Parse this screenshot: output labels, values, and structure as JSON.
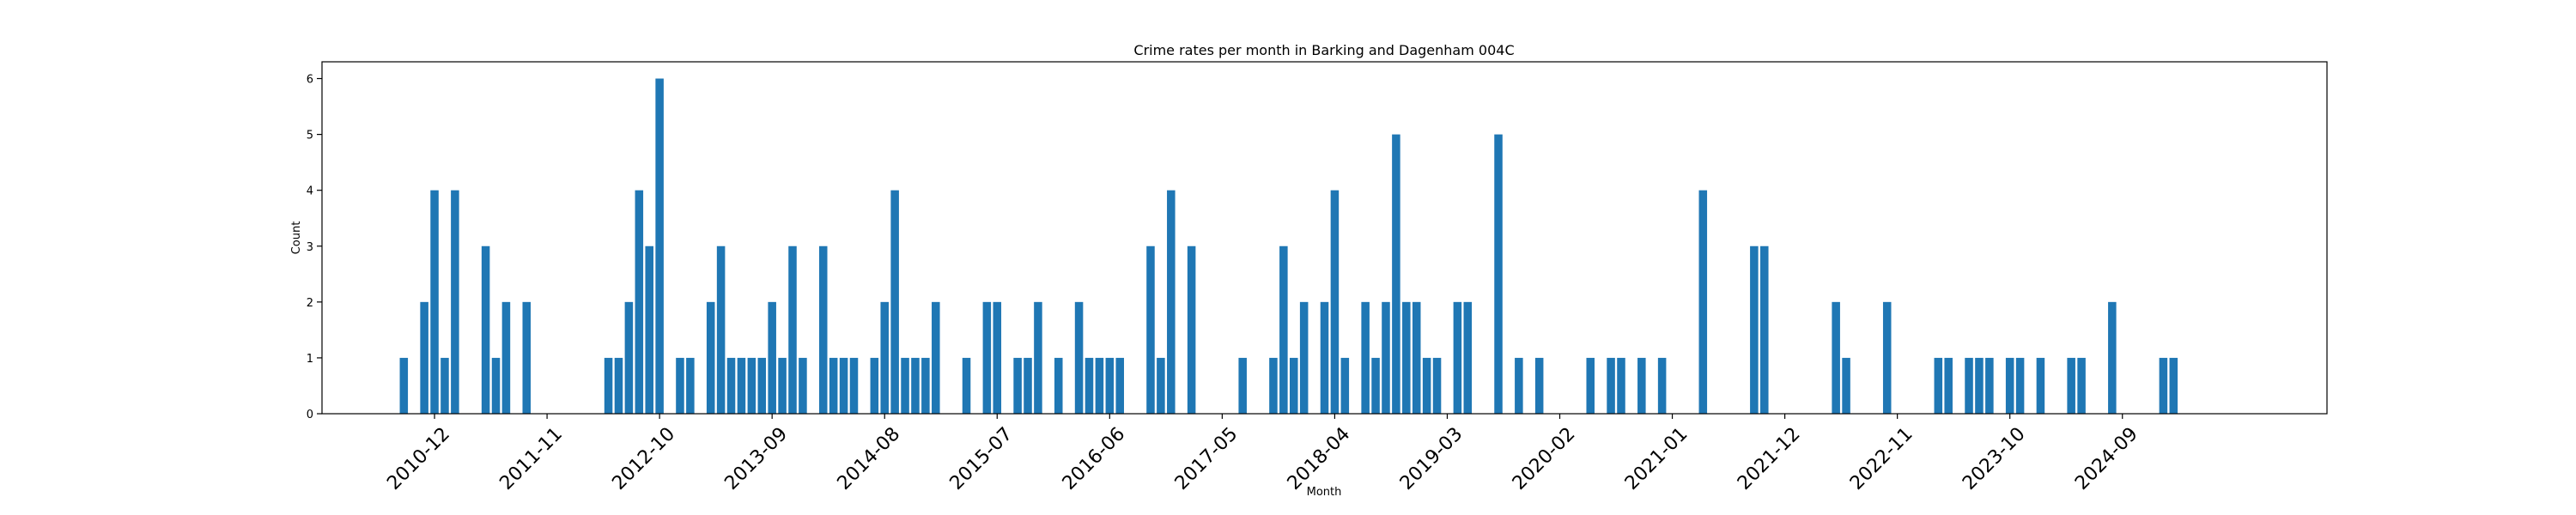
{
  "chart_data": {
    "type": "bar",
    "title": "Crime rates per month in Barking and Dagenham 004C",
    "xlabel": "Month",
    "ylabel": "Count",
    "color": "#1f77b4",
    "ylim": [
      0,
      6.3
    ],
    "yticks": [
      0,
      1,
      2,
      3,
      4,
      5,
      6
    ],
    "xlim": [
      "2010-01",
      "2026-05"
    ],
    "xticks": [
      "2010-12",
      "2011-11",
      "2012-10",
      "2013-09",
      "2014-08",
      "2015-07",
      "2016-06",
      "2017-05",
      "2018-04",
      "2019-03",
      "2020-02",
      "2021-01",
      "2021-12",
      "2022-11",
      "2023-10",
      "2024-09"
    ],
    "grid": false,
    "categories": [
      "2010-09",
      "2010-11",
      "2010-12",
      "2011-01",
      "2011-02",
      "2011-05",
      "2011-06",
      "2011-07",
      "2011-09",
      "2012-05",
      "2012-06",
      "2012-07",
      "2012-08",
      "2012-09",
      "2012-10",
      "2012-12",
      "2013-01",
      "2013-03",
      "2013-04",
      "2013-05",
      "2013-06",
      "2013-07",
      "2013-08",
      "2013-09",
      "2013-10",
      "2013-11",
      "2013-12",
      "2014-02",
      "2014-03",
      "2014-04",
      "2014-05",
      "2014-07",
      "2014-08",
      "2014-09",
      "2014-10",
      "2014-11",
      "2014-12",
      "2015-01",
      "2015-04",
      "2015-06",
      "2015-07",
      "2015-09",
      "2015-10",
      "2015-11",
      "2016-01",
      "2016-03",
      "2016-04",
      "2016-05",
      "2016-06",
      "2016-07",
      "2016-10",
      "2016-11",
      "2016-12",
      "2017-02",
      "2017-07",
      "2017-10",
      "2017-11",
      "2017-12",
      "2018-01",
      "2018-03",
      "2018-04",
      "2018-05",
      "2018-07",
      "2018-08",
      "2018-09",
      "2018-10",
      "2018-11",
      "2018-12",
      "2019-01",
      "2019-02",
      "2019-04",
      "2019-05",
      "2019-08",
      "2019-10",
      "2019-12",
      "2020-05",
      "2020-07",
      "2020-08",
      "2020-10",
      "2020-12",
      "2021-04",
      "2021-09",
      "2021-10",
      "2022-05",
      "2022-06",
      "2022-10",
      "2023-03",
      "2023-04",
      "2023-06",
      "2023-07",
      "2023-08",
      "2023-10",
      "2023-11",
      "2024-01",
      "2024-04",
      "2024-05",
      "2024-08",
      "2025-01",
      "2025-02"
    ],
    "values": [
      1,
      2,
      4,
      1,
      4,
      3,
      1,
      2,
      2,
      1,
      1,
      2,
      4,
      3,
      6,
      1,
      1,
      2,
      3,
      1,
      1,
      1,
      1,
      2,
      1,
      3,
      1,
      3,
      1,
      1,
      1,
      1,
      2,
      4,
      1,
      1,
      1,
      2,
      1,
      2,
      2,
      1,
      1,
      2,
      1,
      2,
      1,
      1,
      1,
      1,
      3,
      1,
      4,
      3,
      1,
      1,
      3,
      1,
      2,
      2,
      4,
      1,
      2,
      1,
      2,
      5,
      2,
      2,
      1,
      1,
      2,
      2,
      5,
      1,
      1,
      1,
      1,
      1,
      1,
      1,
      4,
      3,
      3,
      2,
      1,
      2,
      1,
      1,
      1,
      1,
      1,
      1,
      1,
      1,
      1,
      1,
      2,
      1,
      1
    ]
  }
}
